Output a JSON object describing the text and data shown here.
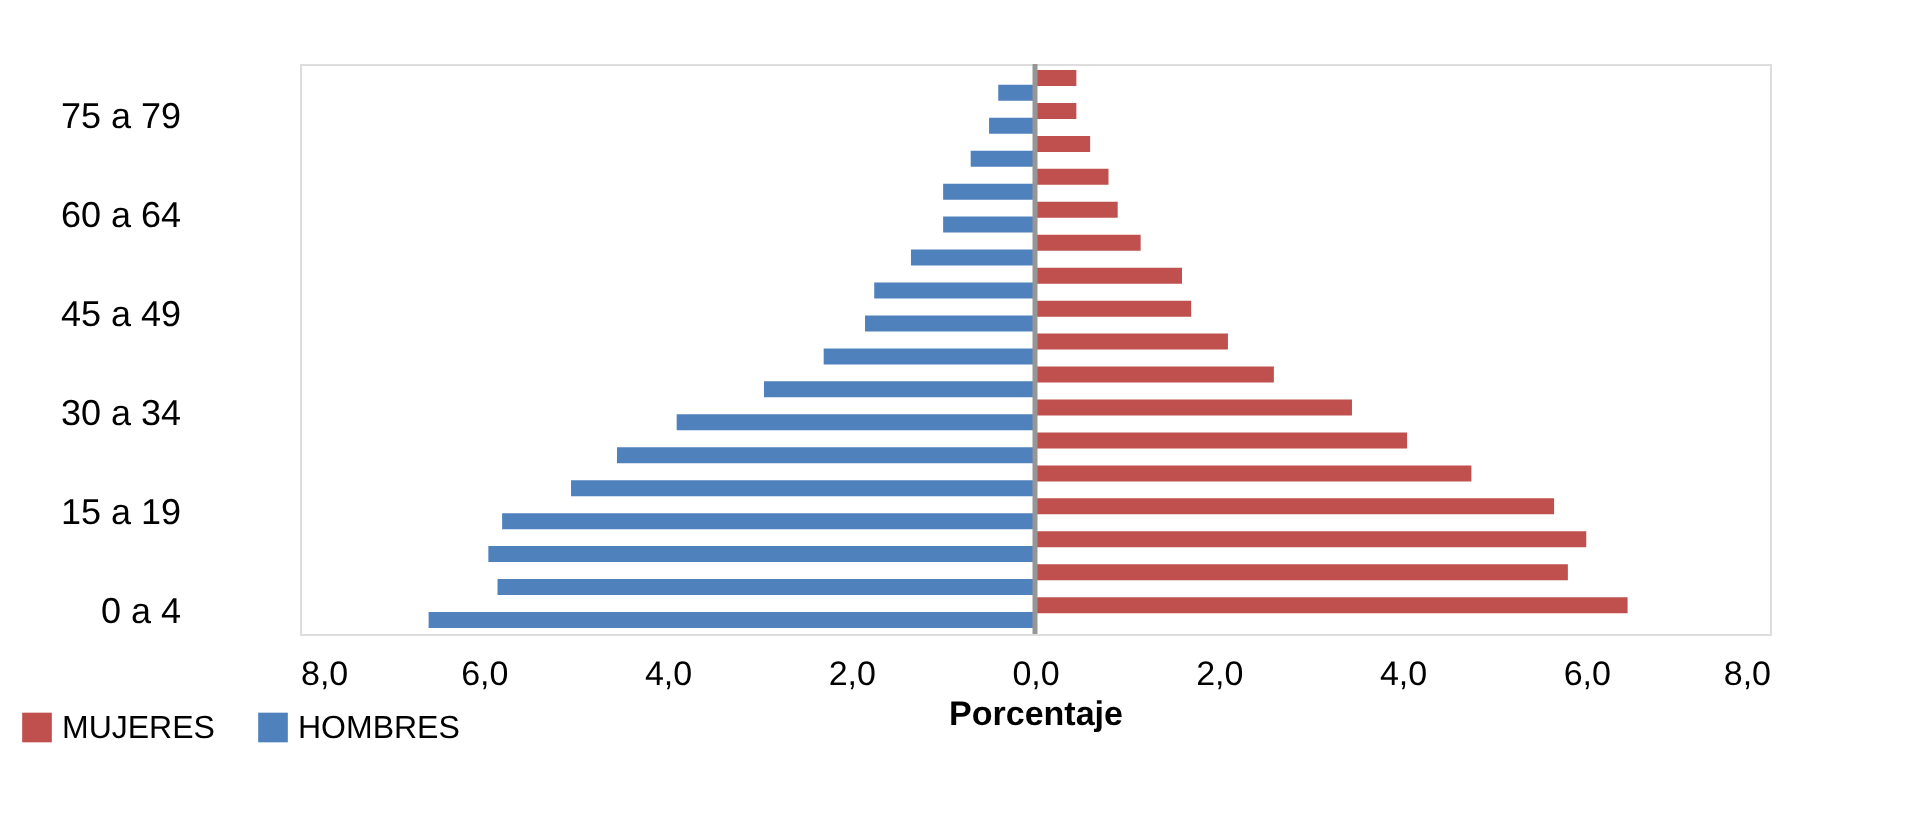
{
  "chart_data": {
    "type": "bar",
    "orientation": "horizontal",
    "xlabel": "Porcentaje",
    "categories": [
      null,
      "75 a 79",
      null,
      null,
      "60 a 64",
      null,
      null,
      "45 a 49",
      null,
      null,
      "30 a 34",
      null,
      null,
      "15 a 19",
      null,
      null,
      "0 a 4"
    ],
    "series": [
      {
        "name": "MUJERES",
        "color": "#c0504d",
        "values": [
          0.45,
          0.45,
          0.6,
          0.8,
          0.9,
          1.15,
          1.6,
          1.7,
          2.1,
          2.6,
          3.45,
          4.05,
          4.75,
          5.65,
          6.0,
          5.8,
          6.45
        ]
      },
      {
        "name": "HOMBRES",
        "color": "#4f81bd",
        "values": [
          -0.4,
          -0.5,
          -0.7,
          -1.0,
          -1.0,
          -1.35,
          -1.75,
          -1.85,
          -2.3,
          -2.95,
          -3.9,
          -4.55,
          -5.05,
          -5.8,
          -5.95,
          -5.85,
          -6.6
        ]
      }
    ],
    "xlim": [
      -8,
      8
    ],
    "xticks": [
      {
        "value": -8,
        "label": "8,0"
      },
      {
        "value": -6,
        "label": "6,0"
      },
      {
        "value": -4,
        "label": "4,0"
      },
      {
        "value": -2,
        "label": "2,0"
      },
      {
        "value": 0,
        "label": "0,0"
      },
      {
        "value": 2,
        "label": "2,0"
      },
      {
        "value": 4,
        "label": "4,0"
      },
      {
        "value": 6,
        "label": "6,0"
      },
      {
        "value": 8,
        "label": "8,0"
      }
    ],
    "ref_lines": [
      {
        "axis": "x",
        "value": 0,
        "color": "#969696"
      }
    ],
    "grid": false,
    "legend": "bottom left"
  }
}
